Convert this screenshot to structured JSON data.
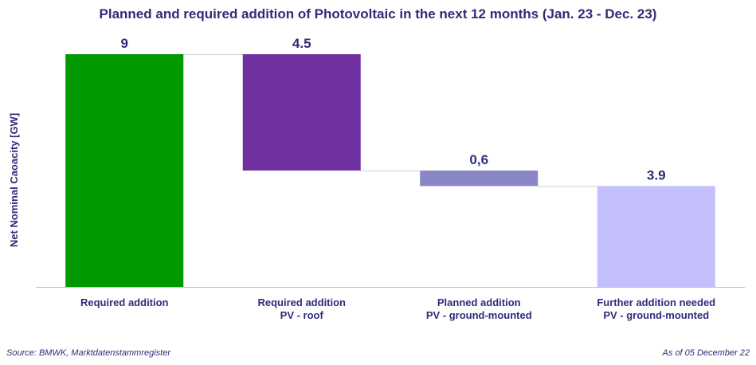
{
  "chart_data": {
    "type": "bar",
    "subtype": "waterfall",
    "title": "Planned and required addition of Photovoltaic in the next 12 months (Jan. 23 - Dec. 23)",
    "ylabel": "Net Nominal Caoacity [GW]",
    "xlabel": "",
    "ylim": [
      0,
      9
    ],
    "grid": false,
    "legend": "none",
    "bars": [
      {
        "category": [
          "Required addition"
        ],
        "label": "9",
        "value": 9,
        "start": 0,
        "end": 9,
        "color": "#009900"
      },
      {
        "category": [
          "Required addition",
          "PV - roof"
        ],
        "label": "4.5",
        "value": 4.5,
        "start": 9,
        "end": 4.5,
        "color": "#7030a0"
      },
      {
        "category": [
          "Planned addition",
          "PV - ground-mounted"
        ],
        "label": "0,6",
        "value": 0.6,
        "start": 4.5,
        "end": 3.9,
        "color": "#8886c4"
      },
      {
        "category": [
          "Further addition needed",
          "PV - ground-mounted"
        ],
        "label": "3.9",
        "value": 3.9,
        "start": 0,
        "end": 3.9,
        "color": "#c3c0fc"
      }
    ]
  },
  "footer": {
    "source": "Source: BMWK, Marktdatenstammregister",
    "as_of": "As of 05 December 22"
  },
  "colors": {
    "text": "#2e2c7a",
    "axis": "#bfbfbf",
    "connector": "#d0d0d0"
  }
}
